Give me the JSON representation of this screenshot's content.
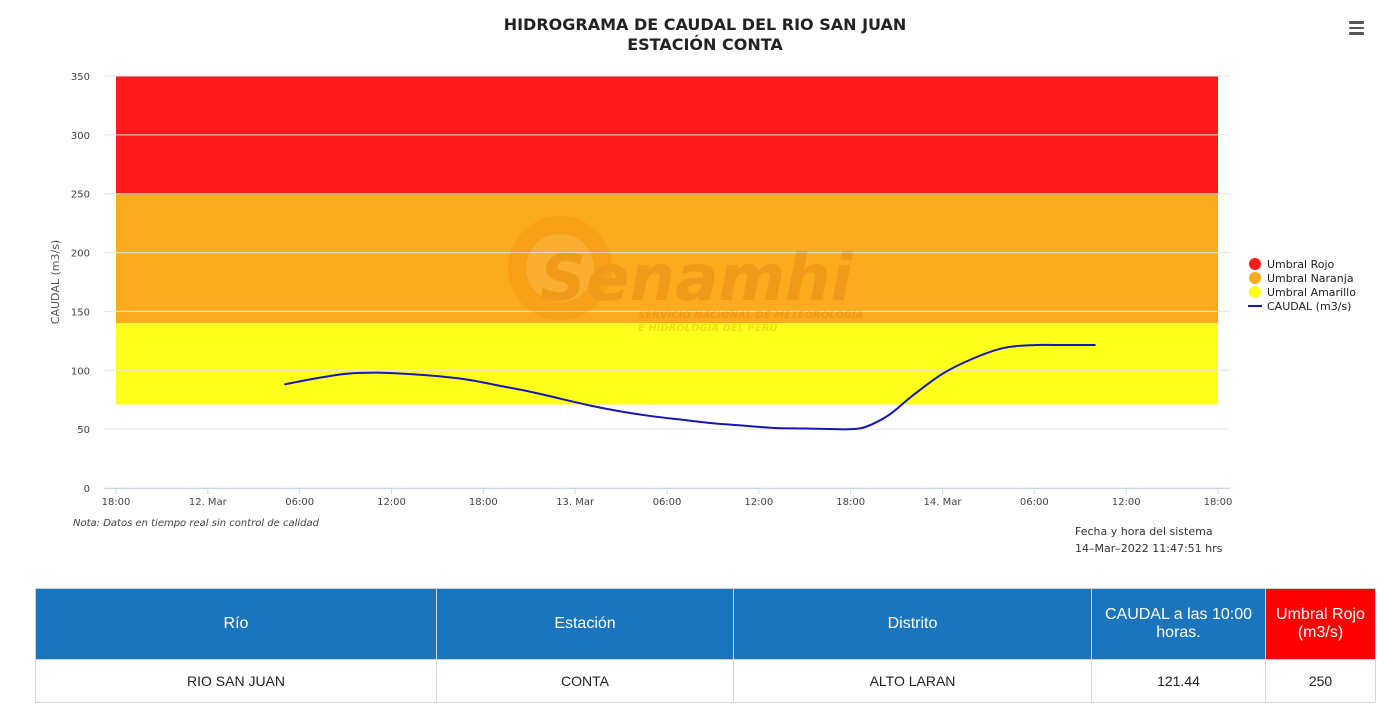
{
  "chart_data": {
    "type": "line",
    "title": "HIDROGRAMA DE CAUDAL DEL RIO SAN JUAN",
    "subtitle": "ESTACIÓN CONTA",
    "ylabel": "CAUDAL (m3/s)",
    "ylim": [
      0,
      350
    ],
    "yticks": [
      0,
      50,
      100,
      150,
      200,
      250,
      300,
      350
    ],
    "xlim_hours": [
      -6,
      66
    ],
    "xticks": [
      {
        "h": -6,
        "label": "18:00"
      },
      {
        "h": 0,
        "label": "12. Mar"
      },
      {
        "h": 6,
        "label": "06:00"
      },
      {
        "h": 12,
        "label": "12:00"
      },
      {
        "h": 18,
        "label": "18:00"
      },
      {
        "h": 24,
        "label": "13. Mar"
      },
      {
        "h": 30,
        "label": "06:00"
      },
      {
        "h": 36,
        "label": "12:00"
      },
      {
        "h": 42,
        "label": "18:00"
      },
      {
        "h": 48,
        "label": "14. Mar"
      },
      {
        "h": 54,
        "label": "06:00"
      },
      {
        "h": 60,
        "label": "12:00"
      },
      {
        "h": 66,
        "label": "18:00"
      }
    ],
    "bands": [
      {
        "name": "Umbral Rojo",
        "from": 250,
        "to": 350,
        "color": "#ff1b1b"
      },
      {
        "name": "Umbral Naranja",
        "from": 140,
        "to": 250,
        "color": "#fdab1e"
      },
      {
        "name": "Umbral Amarillo",
        "from": 71,
        "to": 140,
        "color": "#ffff1c"
      }
    ],
    "series": [
      {
        "name": "CAUDAL (m3/s)",
        "color": "#1616b4",
        "points": [
          {
            "h": 5,
            "y": 88
          },
          {
            "h": 7,
            "y": 93
          },
          {
            "h": 9,
            "y": 97
          },
          {
            "h": 11,
            "y": 98
          },
          {
            "h": 13,
            "y": 97
          },
          {
            "h": 15,
            "y": 95
          },
          {
            "h": 17,
            "y": 92
          },
          {
            "h": 19,
            "y": 87
          },
          {
            "h": 21,
            "y": 82
          },
          {
            "h": 23,
            "y": 76
          },
          {
            "h": 25,
            "y": 70
          },
          {
            "h": 27,
            "y": 65
          },
          {
            "h": 29,
            "y": 61
          },
          {
            "h": 31,
            "y": 58
          },
          {
            "h": 33,
            "y": 55
          },
          {
            "h": 35,
            "y": 53
          },
          {
            "h": 37,
            "y": 51
          },
          {
            "h": 39,
            "y": 50.5
          },
          {
            "h": 41,
            "y": 50
          },
          {
            "h": 42,
            "y": 50
          },
          {
            "h": 43,
            "y": 52
          },
          {
            "h": 44.5,
            "y": 62
          },
          {
            "h": 46,
            "y": 78
          },
          {
            "h": 48,
            "y": 97
          },
          {
            "h": 50,
            "y": 110
          },
          {
            "h": 52,
            "y": 119
          },
          {
            "h": 54,
            "y": 121.4
          },
          {
            "h": 56,
            "y": 121.44
          },
          {
            "h": 58,
            "y": 121.44
          }
        ]
      }
    ],
    "legend_position": "right"
  },
  "watermark": {
    "brand": "Senamhi",
    "line1": "SERVICIO NACIONAL DE METEOROLOGÍA",
    "line2": "E HIDROLOGÍA DEL PERÚ"
  },
  "note": "Nota: Datos en tiempo real sin control de calidad",
  "system_time": {
    "label": "Fecha y hora del sistema",
    "value": "14–Mar–2022 11:47:51 hrs"
  },
  "menu_icon": "hamburger-menu-icon",
  "table": {
    "headers": [
      "Río",
      "Estación",
      "Distrito",
      "CAUDAL a las 10:00 horas.",
      "Umbral Rojo (m3/s)"
    ],
    "row": [
      "RIO SAN JUAN",
      "CONTA",
      "ALTO LARAN",
      "121.44",
      "250"
    ]
  },
  "colors": {
    "header_blue": "#1b75bc",
    "header_red": "#ff0000"
  }
}
